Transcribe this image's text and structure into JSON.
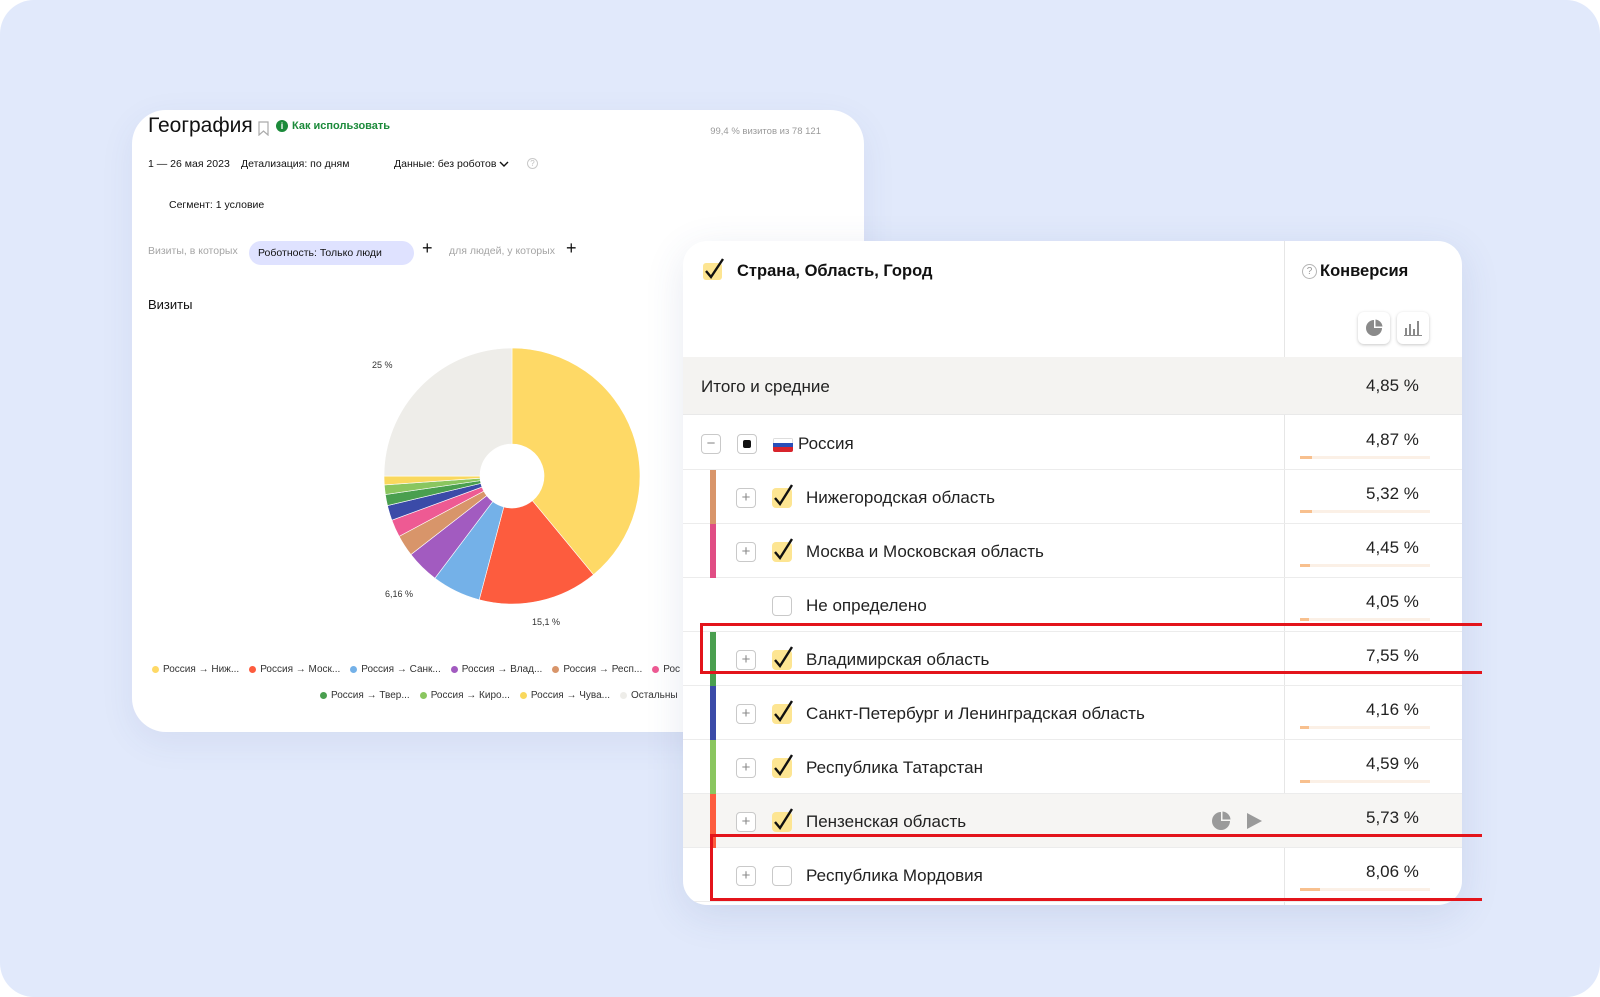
{
  "left_panel": {
    "title": "География",
    "how_to_use": "Как использовать",
    "visits_share": "99,4 % визитов из 78 121",
    "date_range": "1 — 26 мая 2023",
    "detail": "Детализация: по дням",
    "data_filter": "Данные: без роботов",
    "segment": "Сегмент: 1 условие",
    "visits_where": "Визиты, в которых",
    "chip": "Роботность: Только люди",
    "people_where": "для людей, у которых",
    "chart_heading": "Визиты",
    "pie_labels": {
      "top_left": "25 %",
      "bottom_left": "6,16 %",
      "bottom": "15,1 %"
    },
    "legend_row1": [
      "Россия → Ниж...",
      "Россия → Моск...",
      "Россия → Санк...",
      "Россия → Влад...",
      "Россия → Респ...",
      "Рос"
    ],
    "legend_row2": [
      "Россия → Твер...",
      "Россия → Киро...",
      "Россия → Чува...",
      "Остальны"
    ]
  },
  "chart_data": {
    "type": "pie",
    "title": "Визиты",
    "donut": true,
    "slices": [
      {
        "label": "Россия → Ниж...",
        "value": 39.0,
        "color": "#fed966"
      },
      {
        "label": "Россия → Моск...",
        "value": 15.1,
        "color": "#fd5c3e"
      },
      {
        "label": "Россия → Санк...",
        "value": 6.16,
        "color": "#74b1e8"
      },
      {
        "label": "Россия → Влад...",
        "value": 4.2,
        "color": "#a25bc0"
      },
      {
        "label": "Россия → Респ...",
        "value": 2.7,
        "color": "#d8956a"
      },
      {
        "label": "Рос",
        "value": 2.2,
        "color": "#ee5a93"
      },
      {
        "label": "",
        "value": 1.9,
        "color": "#3b4ba8"
      },
      {
        "label": "Россия → Твер...",
        "value": 1.4,
        "color": "#4a9f4f"
      },
      {
        "label": "Россия → Киро...",
        "value": 1.2,
        "color": "#8ac65f"
      },
      {
        "label": "Россия → Чува...",
        "value": 1.1,
        "color": "#f9d85d"
      },
      {
        "label": "Остальны",
        "value": 25.0,
        "color": "#eeede9"
      }
    ]
  },
  "table": {
    "dimension_header": "Страна, Область, Город",
    "metric_header": "Конверсия",
    "totals_label": "Итого и средние",
    "totals_value": "4,85 %",
    "rows": [
      {
        "label": "Россия",
        "value": "4,87 %",
        "bar": 0.09,
        "stripe": "",
        "level": 0,
        "check": "partial",
        "expand": "−"
      },
      {
        "label": "Нижегородская область",
        "value": "5,32 %",
        "bar": 0.09,
        "stripe": "#d8956a",
        "level": 1,
        "check": "on",
        "expand": "+"
      },
      {
        "label": "Москва и Московская область",
        "value": "4,45 %",
        "bar": 0.08,
        "stripe": "#e04d84",
        "level": 1,
        "check": "on",
        "expand": "+"
      },
      {
        "label": "Не определено",
        "value": "4,05 %",
        "bar": 0.07,
        "stripe": "",
        "level": 1,
        "check": "off",
        "expand": ""
      },
      {
        "label": "Владимирская область",
        "value": "7,55 %",
        "bar": 0.0,
        "stripe": "#4a9f4f",
        "level": 1,
        "check": "on",
        "expand": "+"
      },
      {
        "label": "Санкт-Петербург и Ленинградская область",
        "value": "4,16 %",
        "bar": 0.07,
        "stripe": "#3b4ba8",
        "level": 1,
        "check": "on",
        "expand": "+"
      },
      {
        "label": "Республика Татарстан",
        "value": "4,59 %",
        "bar": 0.08,
        "stripe": "#8ac65f",
        "level": 1,
        "check": "on",
        "expand": "+"
      },
      {
        "label": "Пензенская область",
        "value": "5,73 %",
        "bar": 0.09,
        "stripe": "#fd5c3e",
        "level": 1,
        "check": "on",
        "expand": "+",
        "hover": true
      },
      {
        "label": "Республика Мордовия",
        "value": "8,06 %",
        "bar": 0.15,
        "stripe": "",
        "level": 1,
        "check": "off",
        "expand": "+"
      }
    ]
  },
  "colors": {
    "backdrop": "#e1e9fb",
    "highlight": "#e3141b",
    "checkbox_on": "#fde592",
    "link_green": "#1b8a3a"
  },
  "icons": [
    "bookmark-icon",
    "info-icon",
    "chevron-down-icon",
    "help-icon",
    "plus-icon",
    "pie-chart-icon",
    "bar-chart-icon",
    "play-icon",
    "russia-flag-icon"
  ]
}
